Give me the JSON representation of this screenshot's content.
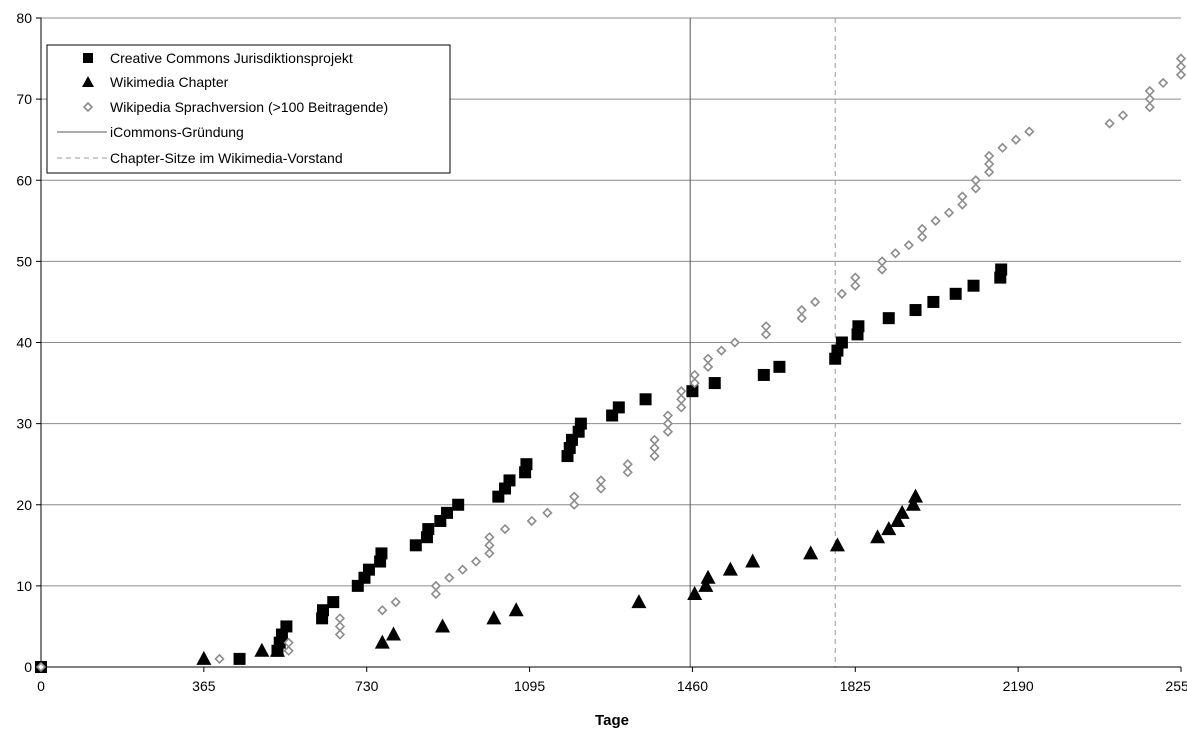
{
  "chart_data": {
    "type": "scatter",
    "title": "",
    "xlabel": "Tage",
    "ylabel": "",
    "xlim": [
      0,
      2555
    ],
    "ylim": [
      0,
      80
    ],
    "xticks": [
      0,
      365,
      730,
      1095,
      1460,
      1825,
      2190,
      2555
    ],
    "yticks": [
      0,
      10,
      20,
      30,
      40,
      50,
      60,
      70,
      80
    ],
    "grid": "horizontal",
    "legend_position": "top-left",
    "colors": {
      "cc": "#000000",
      "wm": "#000000",
      "wp": "#8c8c8c",
      "icommons": "#555555",
      "chapter": "#999999",
      "grid": "#8c8c8c"
    },
    "series": [
      {
        "name": "Creative Commons Jurisdiktionsprojekt",
        "marker": "square",
        "points": [
          [
            0,
            0
          ],
          [
            445,
            1
          ],
          [
            530,
            2
          ],
          [
            535,
            3
          ],
          [
            540,
            4
          ],
          [
            550,
            5
          ],
          [
            630,
            6
          ],
          [
            632,
            7
          ],
          [
            655,
            8
          ],
          [
            710,
            10
          ],
          [
            725,
            11
          ],
          [
            735,
            12
          ],
          [
            760,
            13
          ],
          [
            763,
            14
          ],
          [
            840,
            15
          ],
          [
            865,
            16
          ],
          [
            868,
            17
          ],
          [
            895,
            18
          ],
          [
            910,
            19
          ],
          [
            935,
            20
          ],
          [
            1025,
            21
          ],
          [
            1040,
            22
          ],
          [
            1050,
            23
          ],
          [
            1085,
            24
          ],
          [
            1088,
            25
          ],
          [
            1180,
            26
          ],
          [
            1185,
            27
          ],
          [
            1190,
            28
          ],
          [
            1205,
            29
          ],
          [
            1210,
            30
          ],
          [
            1280,
            31
          ],
          [
            1295,
            32
          ],
          [
            1355,
            33
          ],
          [
            1460,
            34
          ],
          [
            1510,
            35
          ],
          [
            1620,
            36
          ],
          [
            1655,
            37
          ],
          [
            1780,
            38
          ],
          [
            1785,
            39
          ],
          [
            1795,
            40
          ],
          [
            1830,
            41
          ],
          [
            1832,
            42
          ],
          [
            1900,
            43
          ],
          [
            1960,
            44
          ],
          [
            2000,
            45
          ],
          [
            2050,
            46
          ],
          [
            2090,
            47
          ],
          [
            2150,
            48
          ],
          [
            2152,
            49
          ]
        ]
      },
      {
        "name": "Wikimedia Chapter",
        "marker": "triangle",
        "points": [
          [
            365,
            1
          ],
          [
            495,
            2
          ],
          [
            530,
            2
          ],
          [
            765,
            3
          ],
          [
            790,
            4
          ],
          [
            900,
            5
          ],
          [
            1015,
            6
          ],
          [
            1065,
            7
          ],
          [
            1340,
            8
          ],
          [
            1465,
            9
          ],
          [
            1490,
            10
          ],
          [
            1495,
            11
          ],
          [
            1545,
            12
          ],
          [
            1595,
            13
          ],
          [
            1725,
            14
          ],
          [
            1785,
            15
          ],
          [
            1875,
            16
          ],
          [
            1900,
            17
          ],
          [
            1920,
            18
          ],
          [
            1930,
            19
          ],
          [
            1955,
            20
          ],
          [
            1960,
            21
          ]
        ]
      },
      {
        "name": "Wikipedia Sprachversion (>100 Beitragende)",
        "marker": "diamond",
        "points": [
          [
            0,
            0
          ],
          [
            400,
            1
          ],
          [
            555,
            2
          ],
          [
            555,
            3
          ],
          [
            670,
            4
          ],
          [
            670,
            5
          ],
          [
            670,
            6
          ],
          [
            765,
            7
          ],
          [
            795,
            8
          ],
          [
            885,
            9
          ],
          [
            885,
            10
          ],
          [
            915,
            11
          ],
          [
            945,
            12
          ],
          [
            975,
            13
          ],
          [
            1005,
            14
          ],
          [
            1005,
            15
          ],
          [
            1005,
            16
          ],
          [
            1040,
            17
          ],
          [
            1100,
            18
          ],
          [
            1135,
            19
          ],
          [
            1195,
            20
          ],
          [
            1195,
            21
          ],
          [
            1255,
            22
          ],
          [
            1255,
            23
          ],
          [
            1315,
            24
          ],
          [
            1315,
            25
          ],
          [
            1375,
            26
          ],
          [
            1375,
            27
          ],
          [
            1375,
            28
          ],
          [
            1405,
            29
          ],
          [
            1405,
            30
          ],
          [
            1405,
            31
          ],
          [
            1435,
            32
          ],
          [
            1435,
            33
          ],
          [
            1435,
            34
          ],
          [
            1465,
            35
          ],
          [
            1465,
            36
          ],
          [
            1495,
            37
          ],
          [
            1495,
            38
          ],
          [
            1525,
            39
          ],
          [
            1555,
            40
          ],
          [
            1625,
            41
          ],
          [
            1625,
            42
          ],
          [
            1705,
            43
          ],
          [
            1705,
            44
          ],
          [
            1735,
            45
          ],
          [
            1795,
            46
          ],
          [
            1825,
            47
          ],
          [
            1825,
            48
          ],
          [
            1885,
            49
          ],
          [
            1885,
            50
          ],
          [
            1915,
            51
          ],
          [
            1945,
            52
          ],
          [
            1975,
            53
          ],
          [
            1975,
            54
          ],
          [
            2005,
            55
          ],
          [
            2035,
            56
          ],
          [
            2065,
            57
          ],
          [
            2065,
            58
          ],
          [
            2095,
            59
          ],
          [
            2095,
            60
          ],
          [
            2125,
            61
          ],
          [
            2125,
            62
          ],
          [
            2125,
            63
          ],
          [
            2155,
            64
          ],
          [
            2185,
            65
          ],
          [
            2215,
            66
          ],
          [
            2395,
            67
          ],
          [
            2425,
            68
          ],
          [
            2485,
            69
          ],
          [
            2485,
            70
          ],
          [
            2485,
            71
          ],
          [
            2515,
            72
          ],
          [
            2575,
            73
          ],
          [
            2605,
            74
          ],
          [
            2605,
            75
          ]
        ]
      }
    ],
    "reference_lines": [
      {
        "name": "iCommons-Gründung",
        "x": 1455,
        "style": "solid"
      },
      {
        "name": "Chapter-Sitze im Wikimedia-Vorstand",
        "x": 1780,
        "style": "dashed"
      }
    ]
  }
}
